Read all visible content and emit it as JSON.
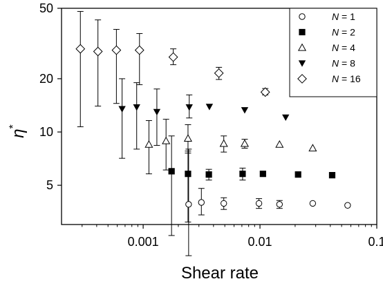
{
  "chart_data": {
    "type": "scatter",
    "xlabel": "Shear rate",
    "ylabel": "η*",
    "x_scale": "log",
    "y_scale": "log",
    "xlim": [
      0.0002,
      0.1
    ],
    "ylim": [
      3,
      50
    ],
    "x_ticks": [
      {
        "value": 0.001,
        "label": "0.001"
      },
      {
        "value": 0.01,
        "label": "0.01"
      },
      {
        "value": 0.1,
        "label": "0.1"
      }
    ],
    "y_ticks": [
      {
        "value": 5,
        "label": "5"
      },
      {
        "value": 10,
        "label": "10"
      },
      {
        "value": 20,
        "label": "20"
      },
      {
        "value": 50,
        "label": "50"
      }
    ],
    "grid": false,
    "legend_position": "top-right",
    "series": [
      {
        "name": "N = 1",
        "legend_label": {
          "pre": "N",
          "post": " = 1"
        },
        "marker": "circle-open",
        "points": [
          {
            "x": 0.00245,
            "y": 3.9,
            "err": [
              2.0,
              8.0
            ]
          },
          {
            "x": 0.00315,
            "y": 4.0,
            "err": [
              3.4,
              4.8
            ]
          },
          {
            "x": 0.0049,
            "y": 3.95,
            "err": [
              3.65,
              4.25
            ]
          },
          {
            "x": 0.0098,
            "y": 3.95,
            "err": [
              3.7,
              4.2
            ]
          },
          {
            "x": 0.0147,
            "y": 3.9,
            "err": [
              3.7,
              4.1
            ]
          },
          {
            "x": 0.0283,
            "y": 3.95
          },
          {
            "x": 0.0563,
            "y": 3.85
          }
        ]
      },
      {
        "name": "N = 2",
        "legend_label": {
          "pre": "N",
          "post": " = 2"
        },
        "marker": "square-filled",
        "points": [
          {
            "x": 0.00175,
            "y": 6.0,
            "err": [
              2.6,
              9.5
            ]
          },
          {
            "x": 0.00242,
            "y": 5.8,
            "err": [
              3.1,
              7.8
            ]
          },
          {
            "x": 0.00365,
            "y": 5.75,
            "err": [
              5.35,
              6.15
            ]
          },
          {
            "x": 0.0071,
            "y": 5.8,
            "err": [
              5.35,
              6.25
            ]
          },
          {
            "x": 0.0106,
            "y": 5.8
          },
          {
            "x": 0.0212,
            "y": 5.75
          },
          {
            "x": 0.0415,
            "y": 5.7
          }
        ]
      },
      {
        "name": "N = 4",
        "legend_label": {
          "pre": "N",
          "post": " = 4"
        },
        "marker": "triangle-up-open",
        "points": [
          {
            "x": 0.00112,
            "y": 8.5,
            "err": [
              5.8,
              11.6
            ]
          },
          {
            "x": 0.00157,
            "y": 8.9,
            "err": [
              6.1,
              11.8
            ]
          },
          {
            "x": 0.00242,
            "y": 9.2,
            "err": [
              7.6,
              11.0
            ]
          },
          {
            "x": 0.0049,
            "y": 8.6,
            "err": [
              7.7,
              9.5
            ]
          },
          {
            "x": 0.0074,
            "y": 8.6,
            "err": [
              8.1,
              9.1
            ]
          },
          {
            "x": 0.0147,
            "y": 8.5
          },
          {
            "x": 0.0283,
            "y": 8.1
          }
        ]
      },
      {
        "name": "N = 8",
        "legend_label": {
          "pre": "N",
          "post": " = 8"
        },
        "marker": "triangle-down-filled",
        "points": [
          {
            "x": 0.00066,
            "y": 13.5,
            "err": [
              7.1,
              20.0
            ]
          },
          {
            "x": 0.00088,
            "y": 13.8,
            "err": [
              8.0,
              19.0
            ]
          },
          {
            "x": 0.00131,
            "y": 13.0,
            "err": [
              8.4,
              17.5
            ]
          },
          {
            "x": 0.00248,
            "y": 13.8,
            "err": [
              12.0,
              16.2
            ]
          },
          {
            "x": 0.00369,
            "y": 13.9
          },
          {
            "x": 0.0074,
            "y": 13.3
          },
          {
            "x": 0.0166,
            "y": 12.1
          }
        ]
      },
      {
        "name": "N = 16",
        "legend_label": {
          "pre": "N",
          "post": " = 16"
        },
        "marker": "diamond-open",
        "points": [
          {
            "x": 0.00029,
            "y": 29.5,
            "err": [
              10.7,
              48.0
            ]
          },
          {
            "x": 0.00041,
            "y": 28.5,
            "err": [
              14.0,
              43.0
            ]
          },
          {
            "x": 0.00059,
            "y": 29.0,
            "err": [
              14.5,
              38.0
            ]
          },
          {
            "x": 0.00093,
            "y": 29.0,
            "err": [
              18.5,
              36.0
            ]
          },
          {
            "x": 0.00181,
            "y": 26.5,
            "err": [
              24.0,
              29.5
            ]
          },
          {
            "x": 0.00445,
            "y": 21.5,
            "err": [
              19.8,
              23.2
            ]
          },
          {
            "x": 0.0111,
            "y": 16.8,
            "err": [
              16.2,
              17.6
            ]
          }
        ]
      }
    ]
  }
}
